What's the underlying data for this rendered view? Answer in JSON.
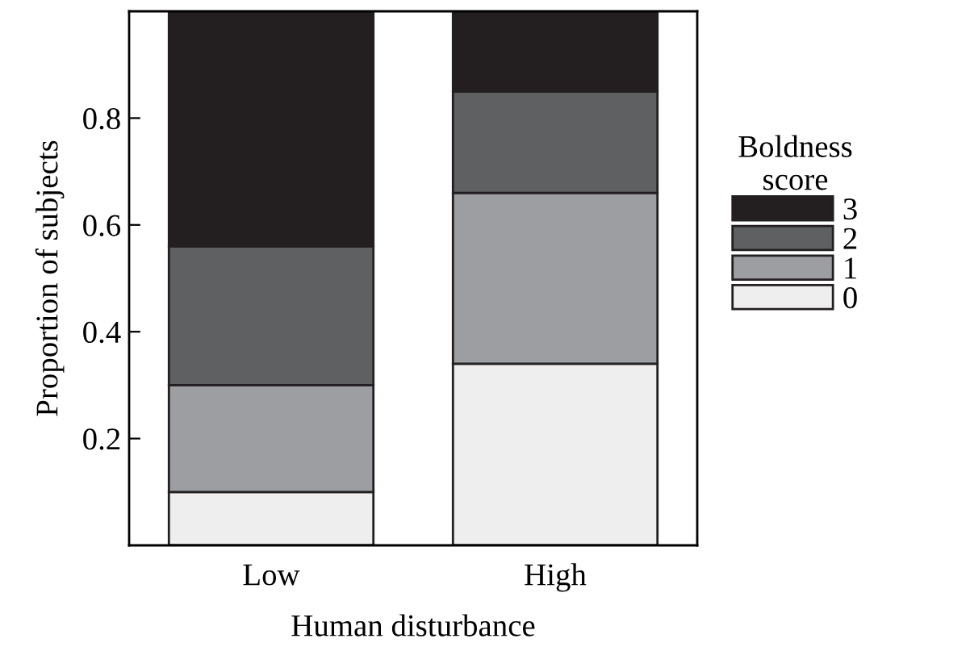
{
  "chart_data": {
    "type": "bar",
    "stacked": true,
    "categories": [
      "Low",
      "High"
    ],
    "xlabel": "Human disturbance",
    "ylabel": "Proportion of subjects",
    "legend_title": "Boldness\nscore",
    "legend": "right",
    "ylim": [
      0,
      1.0
    ],
    "yticks": [
      0.2,
      0.4,
      0.6,
      0.8
    ],
    "series": [
      {
        "name": "0",
        "color": "#eeeeee",
        "values": [
          0.1,
          0.34
        ]
      },
      {
        "name": "1",
        "color": "#9d9ea1",
        "values": [
          0.2,
          0.32
        ]
      },
      {
        "name": "2",
        "color": "#5f6062",
        "values": [
          0.26,
          0.19
        ]
      },
      {
        "name": "3",
        "color": "#231f20",
        "values": [
          0.44,
          0.15
        ]
      }
    ]
  }
}
